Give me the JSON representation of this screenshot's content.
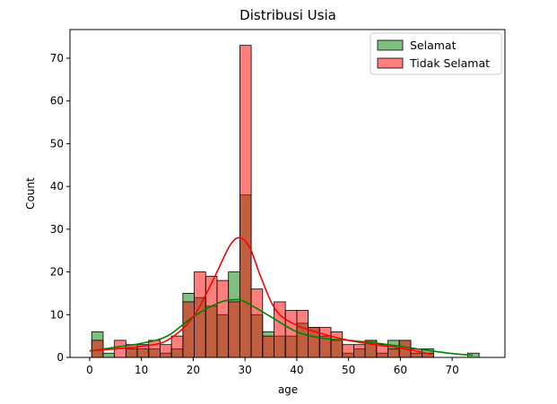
{
  "chart_data": {
    "type": "histogram",
    "title": "Distribusi Usia",
    "xlabel": "age",
    "ylabel": "Count",
    "xlim": [
      -3.8,
      80.2
    ],
    "ylim": [
      0,
      76.7
    ],
    "xticks": [
      0,
      10,
      20,
      30,
      40,
      50,
      60,
      70
    ],
    "yticks": [
      0,
      10,
      20,
      30,
      40,
      50,
      60,
      70
    ],
    "grid": false,
    "legend_position": "top-right",
    "bin_width": 2.2,
    "series": [
      {
        "name": "Selamat",
        "color": "#008000",
        "bin_starts": [
          0.4,
          2.6,
          4.8,
          7.0,
          9.2,
          11.4,
          13.6,
          15.8,
          18.0,
          20.2,
          22.4,
          24.6,
          26.8,
          29.0,
          31.2,
          33.4,
          35.6,
          37.8,
          40.0,
          42.2,
          44.4,
          46.6,
          48.8,
          51.0,
          53.2,
          55.4,
          57.6,
          59.8,
          62.0,
          64.2,
          66.4,
          68.6,
          70.8,
          73.0
        ],
        "counts": [
          6,
          1,
          0,
          2,
          2,
          2,
          1,
          2,
          15,
          14,
          12,
          10,
          20,
          38,
          10,
          6,
          5,
          5,
          8,
          7,
          5,
          4,
          1,
          2,
          4,
          1,
          4,
          4,
          1,
          2,
          0,
          0,
          0,
          1
        ],
        "kde_x": [
          0,
          5,
          10,
          15,
          20,
          25,
          28,
          30,
          35,
          40,
          45,
          50,
          55,
          60,
          65,
          70,
          74
        ],
        "kde_y": [
          1.5,
          2.4,
          3.3,
          5.0,
          9.5,
          12.8,
          13.5,
          13.0,
          9.5,
          6.0,
          4.5,
          4.0,
          3.4,
          2.6,
          1.7,
          0.9,
          0.5
        ]
      },
      {
        "name": "Tidak Selamat",
        "color": "#ff0000",
        "bin_starts": [
          0.4,
          2.6,
          4.8,
          7.0,
          9.2,
          11.4,
          13.6,
          15.8,
          18.0,
          20.2,
          22.4,
          24.6,
          26.8,
          29.0,
          31.2,
          33.4,
          35.6,
          37.8,
          40.0,
          42.2,
          44.4,
          46.6,
          48.8,
          51.0,
          53.2,
          55.4,
          57.6,
          59.8,
          62.0,
          64.2,
          66.4,
          68.6,
          70.8,
          73.0
        ],
        "counts": [
          4,
          0,
          4,
          3,
          3,
          4,
          3,
          5,
          13,
          20,
          19,
          18,
          13,
          73,
          16,
          5,
          13,
          11,
          11,
          7,
          7,
          6,
          3,
          3,
          4,
          3,
          2,
          4,
          2,
          1,
          0,
          0,
          0,
          0
        ],
        "kde_x": [
          0,
          5,
          10,
          15,
          20,
          24,
          27,
          29,
          31,
          33,
          36,
          40,
          45,
          50,
          55,
          60,
          65,
          66
        ],
        "kde_y": [
          1.5,
          2.0,
          2.6,
          4.0,
          9.5,
          18.5,
          26.0,
          28.0,
          25.5,
          19.0,
          11.0,
          7.5,
          5.5,
          4.0,
          3.0,
          2.2,
          1.0,
          0.8
        ]
      }
    ]
  }
}
